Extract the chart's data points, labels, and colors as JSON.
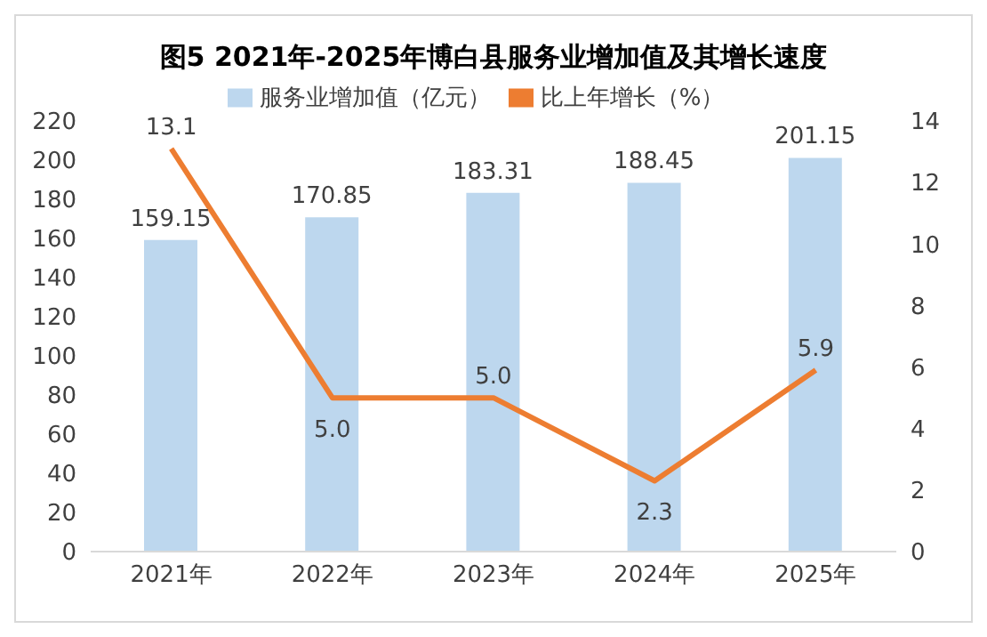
{
  "chart_data": {
    "type": "bar",
    "title": "图5 2021年-2025年博白县服务业增加值及其增长速度",
    "categories": [
      "2021年",
      "2022年",
      "2023年",
      "2024年",
      "2025年"
    ],
    "series": [
      {
        "name": "服务业增加值（亿元）",
        "color": "#bdd7ee",
        "values": [
          159.15,
          170.85,
          183.31,
          188.45,
          201.15
        ]
      },
      {
        "name": "比上年增长（%）",
        "type": "line",
        "axis": "y2",
        "color": "#ed7d31",
        "values": [
          13.1,
          5.0,
          5.0,
          2.3,
          5.9
        ],
        "value_labels": [
          "13.1",
          "5.0",
          "5.0",
          "2.3",
          "5.9"
        ]
      }
    ],
    "value_labels": [
      "159.15",
      "170.85",
      "183.31",
      "188.45",
      "201.15"
    ],
    "ylim": [
      0,
      220
    ],
    "yticks": [
      0,
      20,
      40,
      60,
      80,
      100,
      120,
      140,
      160,
      180,
      200,
      220
    ],
    "y2lim": [
      0,
      14
    ],
    "y2ticks": [
      0,
      2,
      4,
      6,
      8,
      10,
      12,
      14
    ],
    "grid": false,
    "legend": "top",
    "marker": "none",
    "line_style": "solid"
  }
}
